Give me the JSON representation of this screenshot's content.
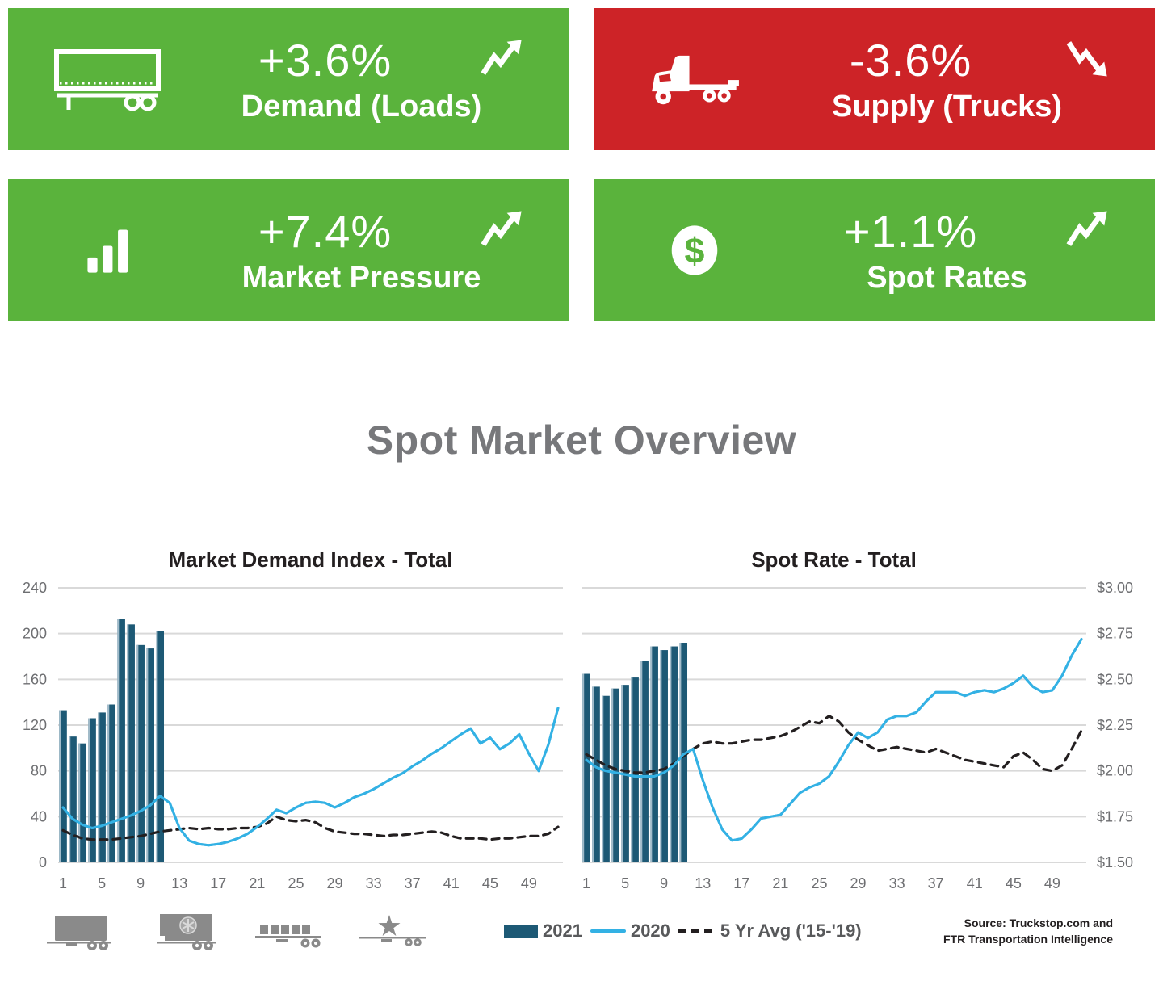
{
  "tiles": [
    {
      "value": "+3.6%",
      "label": "Demand (Loads)",
      "color": "#5ab33c",
      "icon": "trailer-icon",
      "trend": "up"
    },
    {
      "value": "-3.6%",
      "label": "Supply (Trucks)",
      "color": "#cd2327",
      "icon": "truck-icon",
      "trend": "down"
    },
    {
      "value": "+7.4%",
      "label": "Market Pressure",
      "color": "#5ab33c",
      "icon": "bar-chart-icon",
      "trend": "up"
    },
    {
      "value": "+1.1%",
      "label": "Spot Rates",
      "color": "#5ab33c",
      "icon": "dollar-icon",
      "trend": "up"
    }
  ],
  "page_title": "Spot Market Overview",
  "colors": {
    "green": "#5ab33c",
    "red": "#cd2327",
    "bar_2021": "#1d5975",
    "bar_highlight": "#b9cdd9",
    "line_2020": "#33b1e4",
    "line_5yr": "#231f20",
    "grid": "#d9d9d9",
    "tick_text": "#6d6e71"
  },
  "chart_data": [
    {
      "type": "bar",
      "title": "Market Demand Index - Total",
      "weeks": 52,
      "x_ticks": [
        1,
        5,
        9,
        13,
        17,
        21,
        25,
        29,
        33,
        37,
        41,
        45,
        49
      ],
      "y_axis": {
        "side": "left",
        "min": 0,
        "max": 240,
        "tick_values": [
          240,
          200,
          160,
          120,
          80,
          40,
          0
        ],
        "tick_labels": [
          "240",
          "200",
          "160",
          "120",
          "80",
          "40",
          "0"
        ]
      },
      "series": [
        {
          "name": "2021",
          "type": "bar",
          "color": "#1d5975",
          "values": [
            133,
            110,
            104,
            126,
            131,
            138,
            213,
            208,
            190,
            187,
            202
          ]
        },
        {
          "name": "2020",
          "type": "line",
          "color": "#33b1e4",
          "values": [
            48,
            38,
            33,
            30,
            32,
            35,
            38,
            41,
            45,
            50,
            58,
            52,
            30,
            19,
            16,
            15,
            16,
            18,
            21,
            25,
            31,
            38,
            46,
            43,
            48,
            52,
            53,
            52,
            48,
            52,
            57,
            60,
            64,
            69,
            74,
            78,
            84,
            89,
            95,
            100,
            106,
            112,
            117,
            104,
            109,
            99,
            104,
            112,
            95,
            80,
            103,
            135
          ]
        },
        {
          "name": "5 Yr Avg ('15-'19)",
          "type": "dashed-line",
          "color": "#231f20",
          "values": [
            28,
            24,
            21,
            20,
            20,
            20,
            21,
            22,
            23,
            25,
            27,
            28,
            29,
            30,
            29,
            30,
            29,
            29,
            30,
            30,
            31,
            34,
            40,
            37,
            36,
            37,
            35,
            30,
            27,
            26,
            25,
            25,
            24,
            23,
            24,
            24,
            25,
            26,
            27,
            26,
            23,
            21,
            21,
            21,
            20,
            21,
            21,
            22,
            23,
            23,
            25,
            31
          ]
        }
      ]
    },
    {
      "type": "bar",
      "title": "Spot Rate - Total",
      "weeks": 52,
      "x_ticks": [
        1,
        5,
        9,
        13,
        17,
        21,
        25,
        29,
        33,
        37,
        41,
        45,
        49
      ],
      "y_axis": {
        "side": "right",
        "min": 1.5,
        "max": 3.0,
        "tick_values": [
          3.0,
          2.75,
          2.5,
          2.25,
          2.0,
          1.75,
          1.5
        ],
        "tick_labels": [
          "$3.00",
          "$2.75",
          "$2.50",
          "$2.25",
          "$2.00",
          "$1.75",
          "$1.50"
        ]
      },
      "series": [
        {
          "name": "2021",
          "type": "bar",
          "color": "#1d5975",
          "values": [
            2.53,
            2.46,
            2.41,
            2.45,
            2.47,
            2.51,
            2.6,
            2.68,
            2.66,
            2.68,
            2.7
          ]
        },
        {
          "name": "2020",
          "type": "line",
          "color": "#33b1e4",
          "values": [
            2.06,
            2.02,
            2.0,
            1.99,
            1.98,
            1.97,
            1.97,
            1.97,
            1.99,
            2.03,
            2.09,
            2.12,
            1.95,
            1.8,
            1.68,
            1.62,
            1.63,
            1.68,
            1.74,
            1.75,
            1.76,
            1.82,
            1.88,
            1.91,
            1.93,
            1.97,
            2.05,
            2.14,
            2.21,
            2.18,
            2.21,
            2.28,
            2.3,
            2.3,
            2.32,
            2.38,
            2.43,
            2.43,
            2.43,
            2.41,
            2.43,
            2.44,
            2.43,
            2.45,
            2.48,
            2.52,
            2.46,
            2.43,
            2.44,
            2.52,
            2.63,
            2.72
          ]
        },
        {
          "name": "5 Yr Avg ('15-'19)",
          "type": "dashed-line",
          "color": "#231f20",
          "values": [
            2.09,
            2.06,
            2.03,
            2.01,
            2.0,
            1.99,
            1.99,
            2.0,
            2.01,
            2.04,
            2.08,
            2.12,
            2.15,
            2.16,
            2.15,
            2.15,
            2.16,
            2.17,
            2.17,
            2.18,
            2.19,
            2.21,
            2.24,
            2.27,
            2.26,
            2.3,
            2.27,
            2.21,
            2.17,
            2.14,
            2.11,
            2.12,
            2.13,
            2.12,
            2.11,
            2.1,
            2.12,
            2.1,
            2.08,
            2.06,
            2.05,
            2.04,
            2.03,
            2.02,
            2.08,
            2.1,
            2.06,
            2.01,
            2.0,
            2.03,
            2.12,
            2.22
          ]
        }
      ]
    }
  ],
  "legend": {
    "items": [
      {
        "label": "2021",
        "swatch": "bar",
        "color": "#1d5975"
      },
      {
        "label": "2020",
        "swatch": "line",
        "color": "#33b1e4"
      },
      {
        "label": "5 Yr Avg ('15-'19)",
        "swatch": "dash",
        "color": "#231f20"
      }
    ]
  },
  "equipment_icons": [
    {
      "name": "dry-van-icon"
    },
    {
      "name": "reefer-icon"
    },
    {
      "name": "flatbed-load-icon"
    },
    {
      "name": "specialized-icon"
    }
  ],
  "source": {
    "line1": "Source: Truckstop.com and",
    "line2": "FTR Transportation Intelligence"
  }
}
